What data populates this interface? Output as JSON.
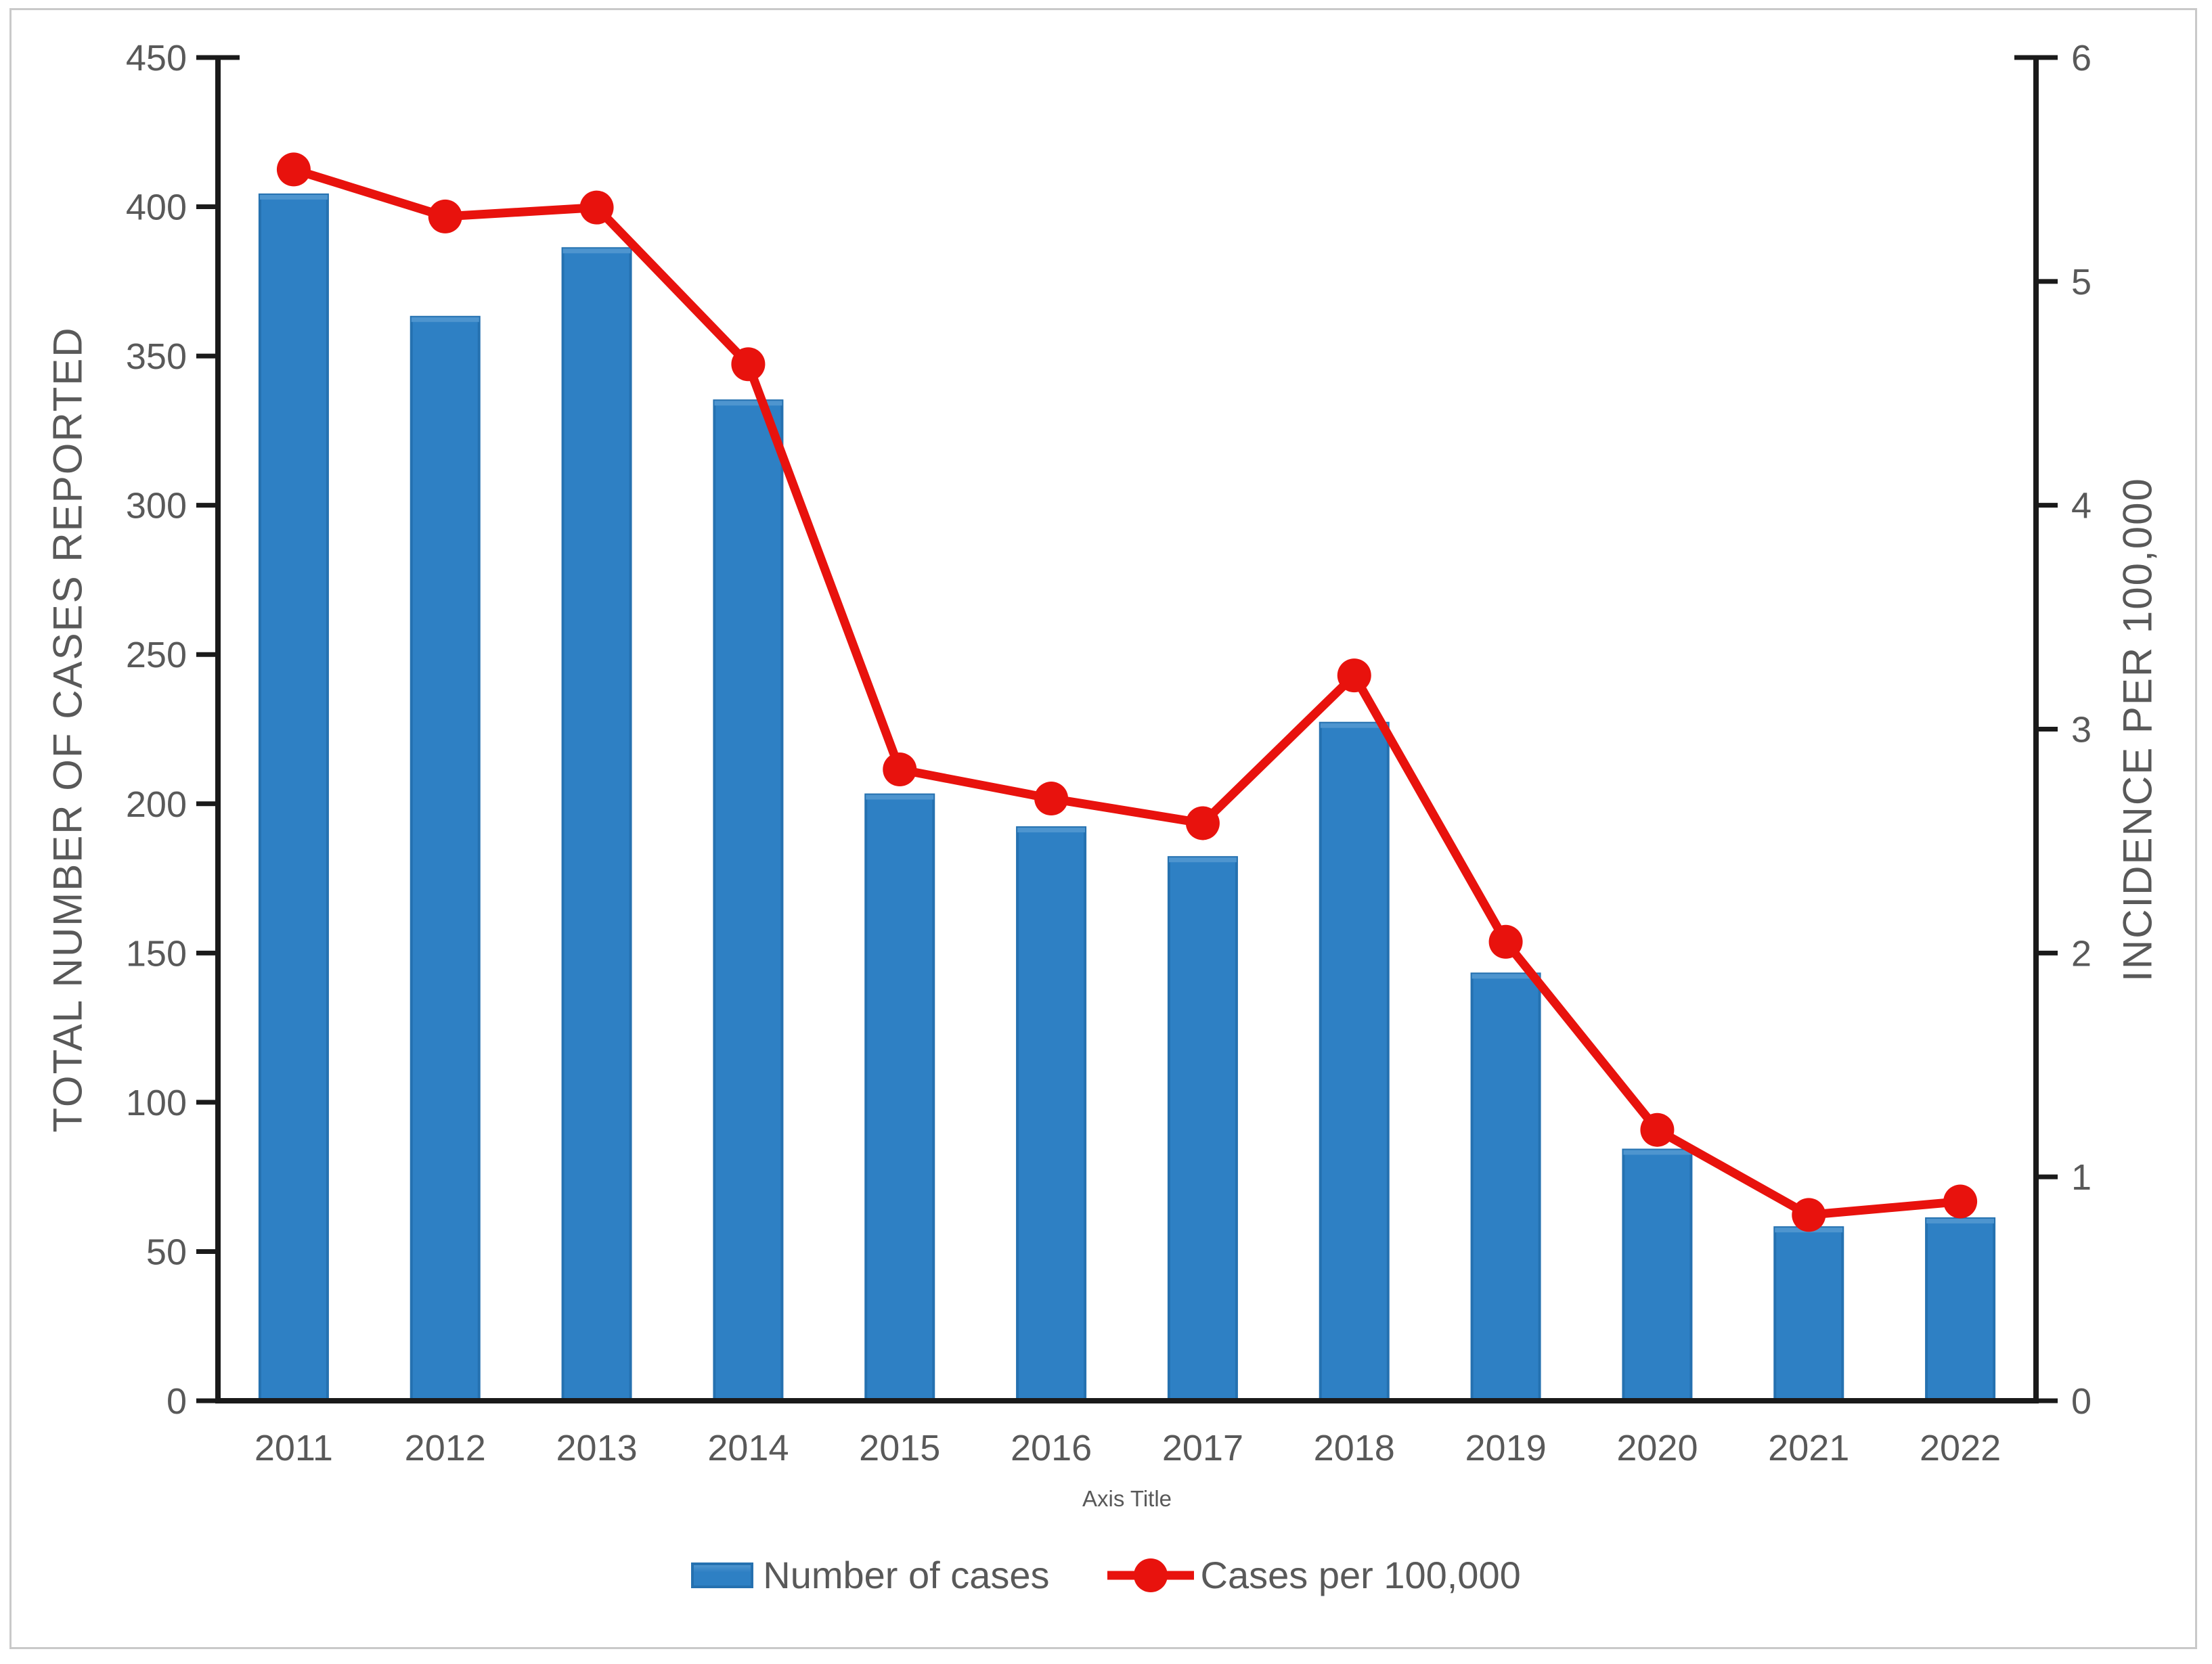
{
  "chart_data": {
    "type": "combo-bar-line",
    "categories": [
      "2011",
      "2012",
      "2013",
      "2014",
      "2015",
      "2016",
      "2017",
      "2018",
      "2019",
      "2020",
      "2021",
      "2022"
    ],
    "series": [
      {
        "name": "Number of cases",
        "type": "bar",
        "axis": "left",
        "values": [
          404,
          363,
          386,
          335,
          203,
          192,
          182,
          227,
          143,
          84,
          58,
          61
        ]
      },
      {
        "name": "Cases per 100,000",
        "type": "line",
        "axis": "right",
        "values": [
          5.5,
          5.29,
          5.33,
          4.63,
          2.82,
          2.69,
          2.58,
          3.24,
          2.05,
          1.21,
          0.83,
          0.89
        ]
      }
    ],
    "axes": {
      "left": {
        "title": "TOTAL NUMBER OF CASES REPORTED",
        "min": 0,
        "max": 450,
        "step": 50,
        "tick_labels": [
          "0",
          "50",
          "100",
          "150",
          "200",
          "250",
          "300",
          "350",
          "400",
          "450"
        ]
      },
      "right": {
        "title": "INCIDENCE PER 100,000",
        "min": 0,
        "max": 6,
        "step": 1,
        "tick_labels": [
          "0",
          "1",
          "2",
          "3",
          "4",
          "5",
          "6"
        ]
      },
      "x": {
        "title": "Axis Title"
      }
    },
    "legend": {
      "position": "bottom",
      "entries": [
        "Number of cases",
        "Cases per 100,000"
      ]
    },
    "grid": false
  },
  "styles": {
    "bar_fill": "#2e80c4",
    "bar_fill_light": "#4e95cf",
    "bar_edge": "#2571b0",
    "line_color": "#e8120d",
    "axis_color": "#1a1a1a",
    "text_color": "#595959",
    "frame_border": "#c9c9c9",
    "background": "#ffffff"
  }
}
